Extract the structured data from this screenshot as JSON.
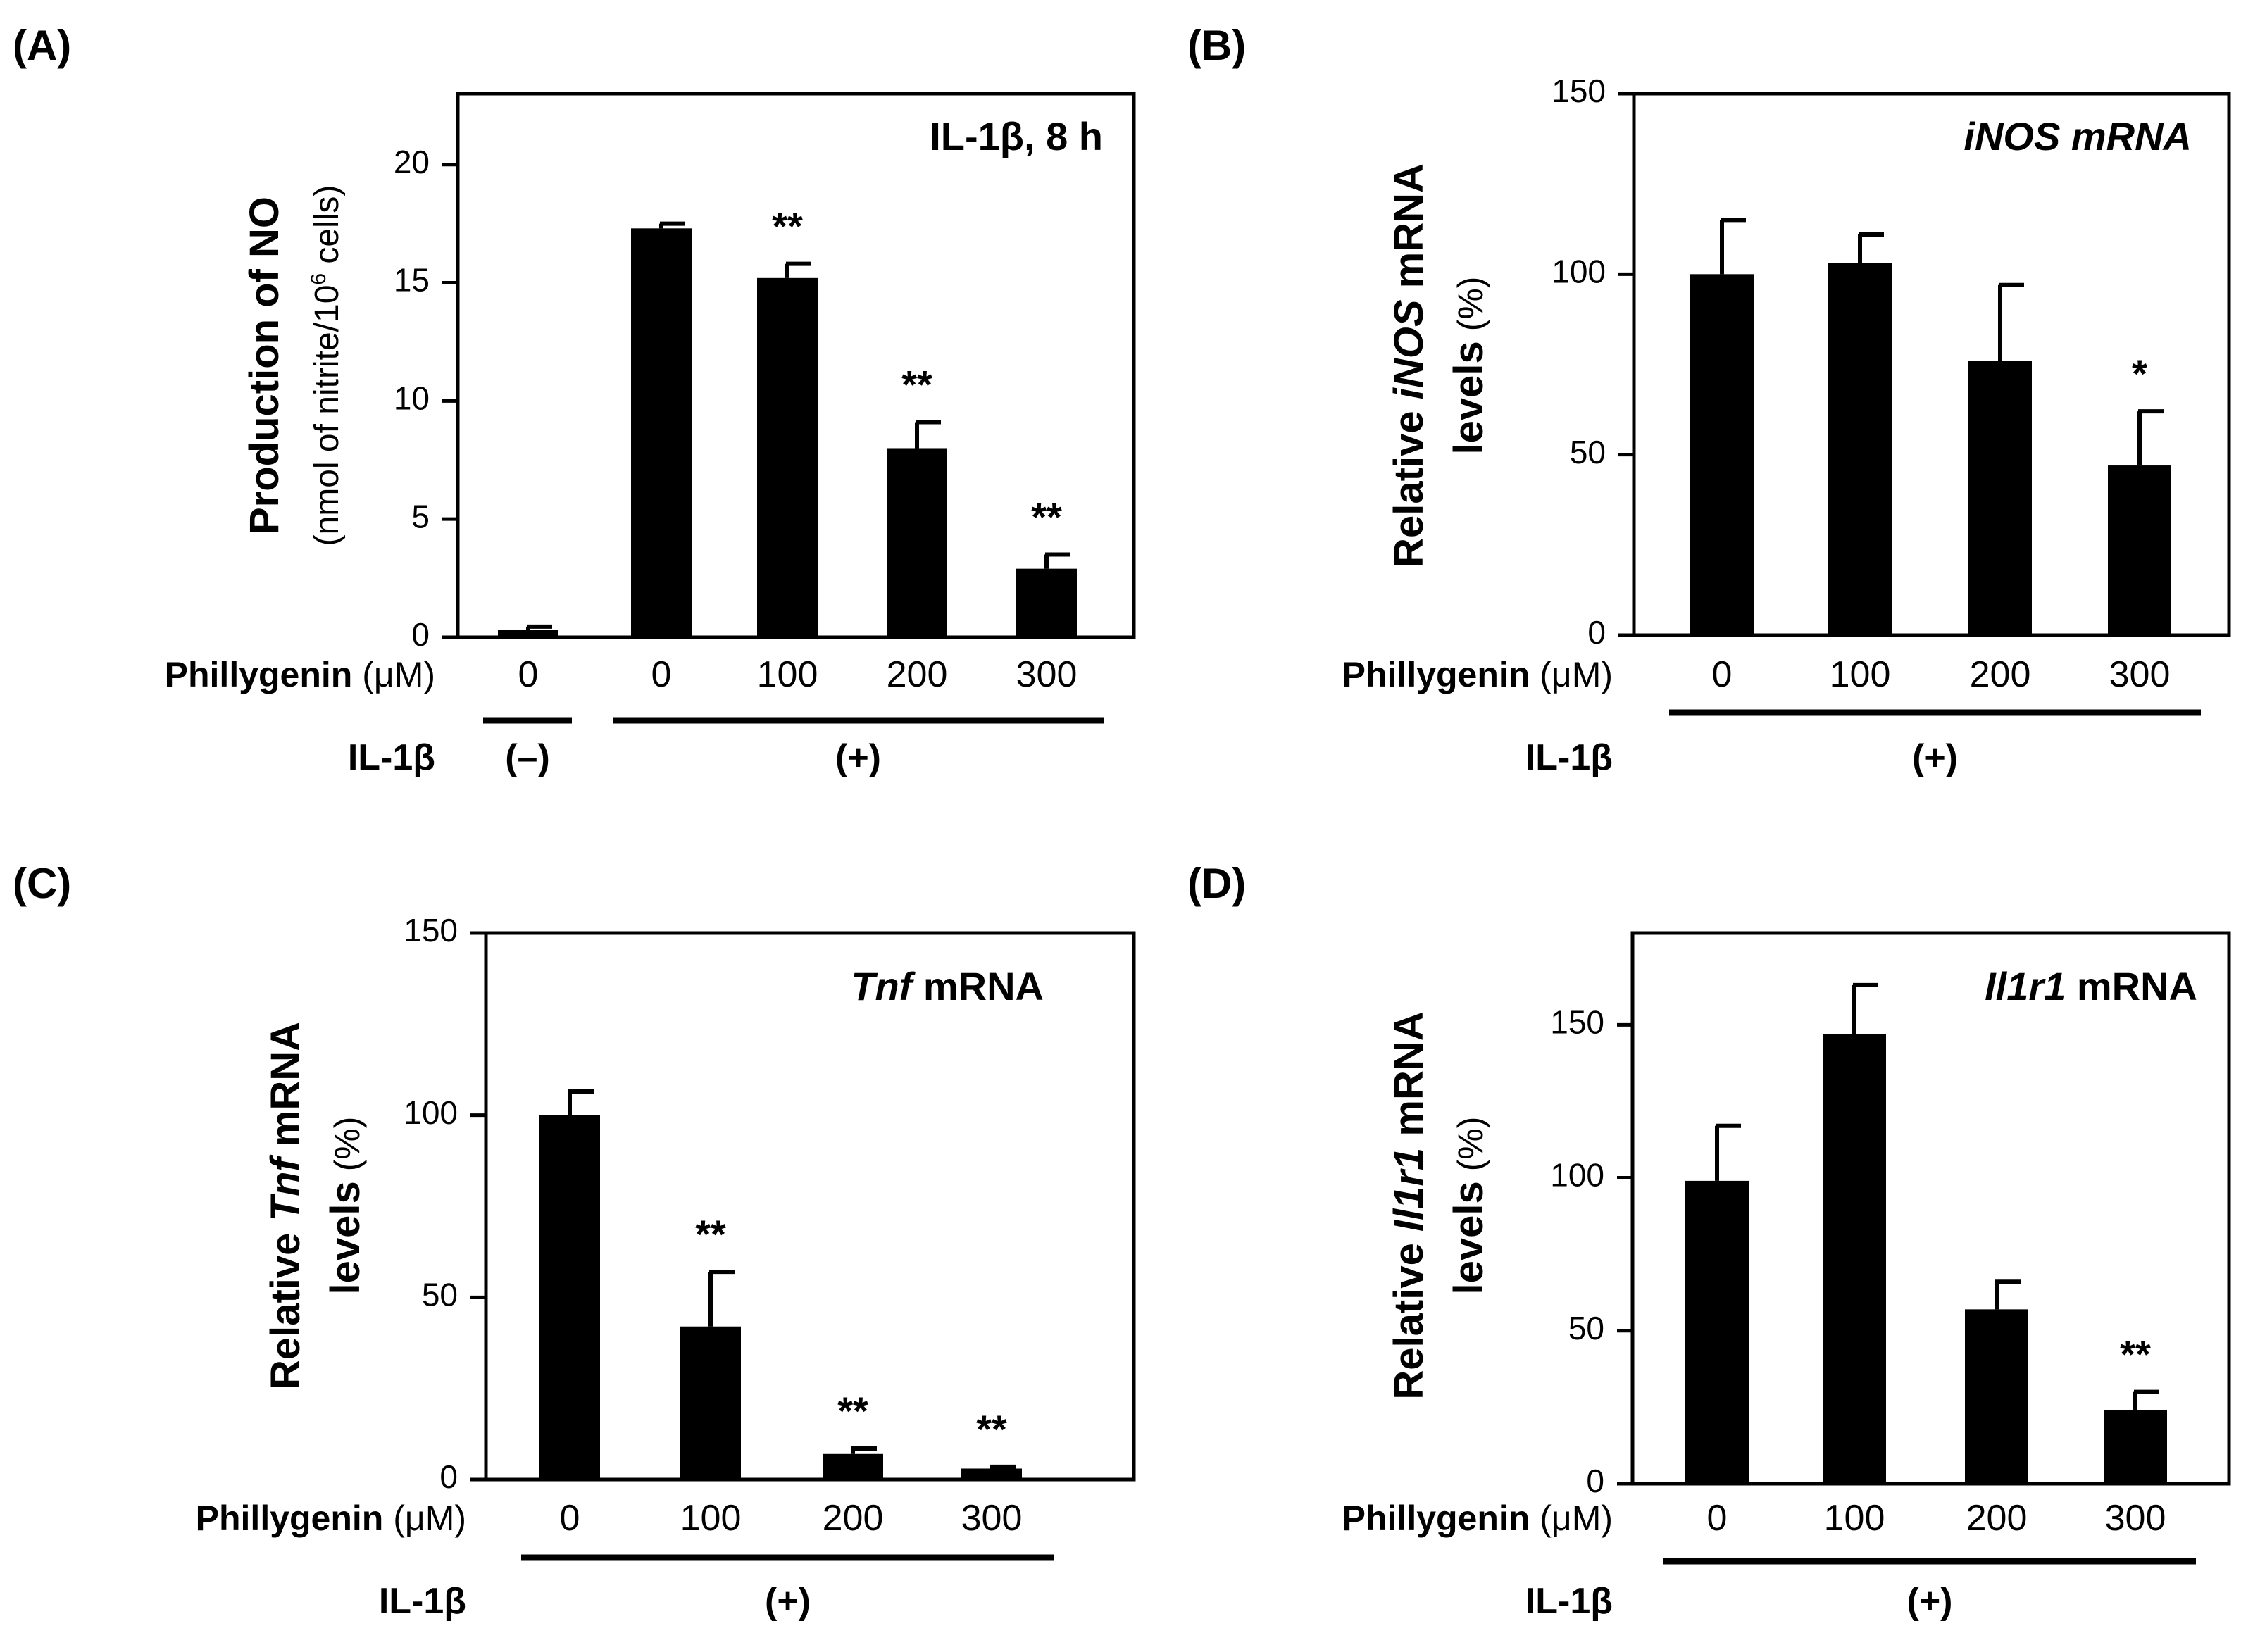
{
  "chart_data": [
    {
      "panel_label": "(A)",
      "type": "bar",
      "title": "IL-1β, 8 h",
      "ylabel": {
        "main": "Production of NO",
        "sub_prefix": "(nmol of nitrite/10",
        "sub_sup": "6",
        "sub_suffix": " cells)"
      },
      "ylim": [
        0,
        23
      ],
      "yticks": [
        0,
        5,
        10,
        15,
        20
      ],
      "categories": [
        "0",
        "0",
        "100",
        "200",
        "300"
      ],
      "values": [
        0.3,
        17.3,
        15.2,
        8.0,
        2.9
      ],
      "errors": [
        0.15,
        0.2,
        0.6,
        1.1,
        0.6
      ],
      "significance": [
        "",
        "",
        "**",
        "**",
        "**"
      ],
      "xlabel_bold": "Phillygenin",
      "xlabel_unit": " (μM)",
      "treatment_label": "IL-1β",
      "groups": [
        {
          "label": "(–)",
          "bars": [
            0
          ]
        },
        {
          "label": "(+)",
          "bars": [
            1,
            2,
            3,
            4
          ]
        }
      ]
    },
    {
      "panel_label": "(B)",
      "type": "bar",
      "title_italic": "iNOS mRNA",
      "title_plain": "",
      "ylabel": {
        "prefix": "Relative ",
        "italic": "iNOS",
        "suffix": " mRNA",
        "line2": "levels",
        "line2_unit": " (%)"
      },
      "ylim": [
        0,
        150
      ],
      "yticks": [
        0,
        50,
        100,
        150
      ],
      "categories": [
        "0",
        "100",
        "200",
        "300"
      ],
      "values": [
        100,
        103,
        76,
        47
      ],
      "errors": [
        15,
        8,
        21,
        15
      ],
      "significance": [
        "",
        "",
        "",
        "*"
      ],
      "xlabel_bold": "Phillygenin",
      "xlabel_unit": " (μM)",
      "treatment_label": "IL-1β",
      "groups": [
        {
          "label": "(+)",
          "bars": [
            0,
            1,
            2,
            3
          ]
        }
      ]
    },
    {
      "panel_label": "(C)",
      "type": "bar",
      "title_italic": "Tnf",
      "title_plain": " mRNA",
      "ylabel": {
        "prefix": "Relative ",
        "italic": "Tnf",
        "suffix": " mRNA",
        "line2": "levels",
        "line2_unit": " (%)"
      },
      "ylim": [
        0,
        150
      ],
      "yticks": [
        0,
        50,
        100,
        150
      ],
      "categories": [
        "0",
        "100",
        "200",
        "300"
      ],
      "values": [
        100,
        42,
        7,
        3
      ],
      "errors": [
        6.5,
        15,
        1.5,
        0.5
      ],
      "significance": [
        "",
        "**",
        "**",
        "**"
      ],
      "xlabel_bold": "Phillygenin",
      "xlabel_unit": " (μM)",
      "treatment_label": "IL-1β",
      "groups": [
        {
          "label": "(+)",
          "bars": [
            0,
            1,
            2,
            3
          ]
        }
      ]
    },
    {
      "panel_label": "(D)",
      "type": "bar",
      "title_italic": "Il1r1",
      "title_plain": " mRNA",
      "ylabel": {
        "prefix": "Relative ",
        "italic": "Il1r1",
        "suffix": " mRNA",
        "line2": "levels",
        "line2_unit": " (%)"
      },
      "ylim": [
        0,
        180
      ],
      "yticks": [
        0,
        50,
        100,
        150
      ],
      "categories": [
        "0",
        "100",
        "200",
        "300"
      ],
      "values": [
        99,
        147,
        57,
        24
      ],
      "errors": [
        18,
        16,
        9,
        6
      ],
      "significance": [
        "",
        "",
        "",
        "**"
      ],
      "xlabel_bold": "Phillygenin",
      "xlabel_unit": " (μM)",
      "treatment_label": "IL-1β",
      "groups": [
        {
          "label": "(+)",
          "bars": [
            0,
            1,
            2,
            3
          ]
        }
      ]
    }
  ]
}
